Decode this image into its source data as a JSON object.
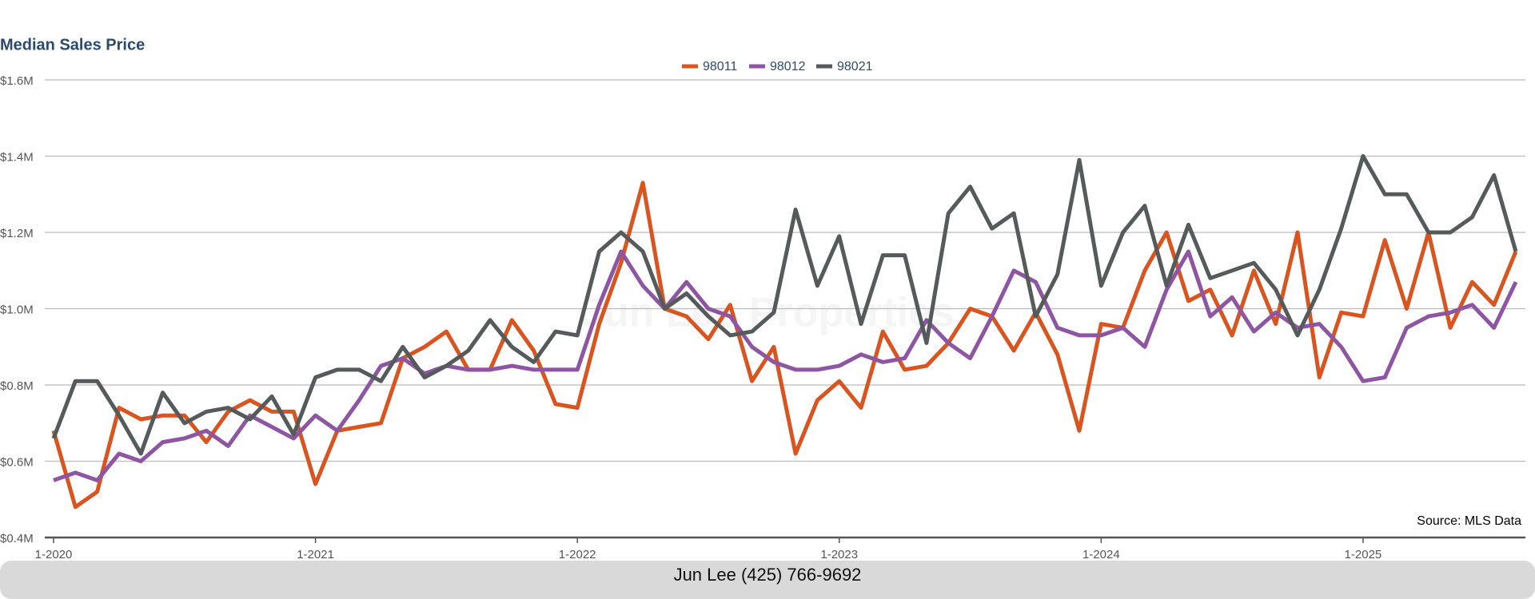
{
  "chart_data": {
    "type": "line",
    "title": "Median Sales Price",
    "watermark": "Jun Lee Properties",
    "source": "Source: MLS Data",
    "footer": "Jun Lee (425) 766-9692",
    "categories": [
      "1-2020",
      null,
      null,
      null,
      null,
      null,
      null,
      null,
      null,
      null,
      null,
      null,
      "1-2021",
      null,
      null,
      null,
      null,
      null,
      null,
      null,
      null,
      null,
      null,
      null,
      "1-2022",
      null,
      null,
      null,
      null,
      null,
      null,
      null,
      null,
      null,
      null,
      null,
      "1-2023",
      null,
      null,
      null,
      null,
      null,
      null,
      null,
      null,
      null,
      null,
      null,
      "1-2024",
      null,
      null,
      null,
      null,
      null,
      null,
      null,
      null,
      null,
      null,
      null,
      "1-2025",
      null,
      null,
      null,
      null,
      null,
      null,
      null
    ],
    "series": [
      {
        "name": "98011",
        "color": "#d9541e",
        "values": [
          680000,
          480000,
          520000,
          740000,
          710000,
          720000,
          720000,
          650000,
          730000,
          760000,
          730000,
          730000,
          540000,
          680000,
          690000,
          700000,
          870000,
          900000,
          940000,
          840000,
          840000,
          970000,
          890000,
          750000,
          740000,
          960000,
          1120000,
          1330000,
          1000000,
          980000,
          920000,
          1010000,
          810000,
          900000,
          620000,
          760000,
          810000,
          740000,
          940000,
          840000,
          850000,
          910000,
          1000000,
          980000,
          890000,
          990000,
          880000,
          680000,
          960000,
          950000,
          1100000,
          1200000,
          1020000,
          1050000,
          930000,
          1100000,
          960000,
          1200000,
          820000,
          990000,
          980000,
          1180000,
          1000000,
          1200000,
          950000,
          1070000,
          1010000,
          1150000
        ]
      },
      {
        "name": "98012",
        "color": "#8e55a3",
        "values": [
          550000,
          570000,
          550000,
          620000,
          600000,
          650000,
          660000,
          680000,
          640000,
          720000,
          690000,
          660000,
          720000,
          680000,
          760000,
          850000,
          870000,
          830000,
          850000,
          840000,
          840000,
          850000,
          840000,
          840000,
          840000,
          1010000,
          1150000,
          1060000,
          1000000,
          1070000,
          1000000,
          980000,
          900000,
          860000,
          840000,
          840000,
          850000,
          880000,
          860000,
          870000,
          970000,
          910000,
          870000,
          980000,
          1100000,
          1070000,
          950000,
          930000,
          930000,
          950000,
          900000,
          1050000,
          1150000,
          980000,
          1030000,
          940000,
          990000,
          950000,
          960000,
          900000,
          810000,
          820000,
          950000,
          980000,
          990000,
          1010000,
          950000,
          1070000
        ]
      },
      {
        "name": "98021",
        "color": "#555b5b",
        "values": [
          660000,
          810000,
          810000,
          720000,
          620000,
          780000,
          700000,
          730000,
          740000,
          710000,
          770000,
          670000,
          820000,
          840000,
          840000,
          810000,
          900000,
          820000,
          850000,
          890000,
          970000,
          900000,
          860000,
          940000,
          930000,
          1150000,
          1200000,
          1150000,
          1000000,
          1040000,
          980000,
          930000,
          940000,
          990000,
          1260000,
          1060000,
          1190000,
          960000,
          1140000,
          1140000,
          910000,
          1250000,
          1320000,
          1210000,
          1250000,
          980000,
          1090000,
          1390000,
          1060000,
          1200000,
          1270000,
          1060000,
          1220000,
          1080000,
          1100000,
          1120000,
          1050000,
          930000,
          1050000,
          1210000,
          1400000,
          1300000,
          1300000,
          1200000,
          1200000,
          1240000,
          1350000,
          1150000
        ]
      }
    ],
    "ylim": [
      400000,
      1600000
    ],
    "yticks": [
      {
        "value": 400000,
        "label": "$0.4M"
      },
      {
        "value": 600000,
        "label": "$0.6M"
      },
      {
        "value": 800000,
        "label": "$0.8M"
      },
      {
        "value": 1000000,
        "label": "$1.0M"
      },
      {
        "value": 1200000,
        "label": "$1.2M"
      },
      {
        "value": 1400000,
        "label": "$1.4M"
      },
      {
        "value": 1600000,
        "label": "$1.6M"
      }
    ],
    "grid": true,
    "legend": "top"
  }
}
